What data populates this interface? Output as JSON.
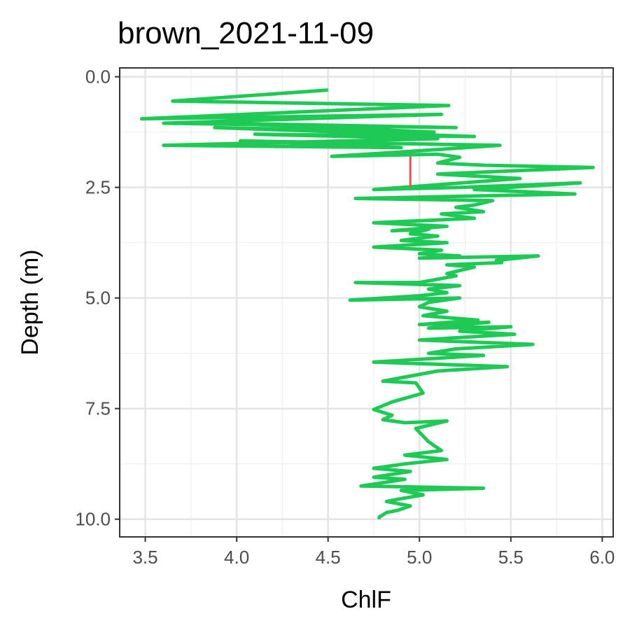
{
  "chart_data": {
    "type": "line",
    "title": "brown_2021-11-09",
    "xlabel": "ChlF",
    "ylabel": "Depth (m)",
    "xlim": [
      3.36,
      6.06
    ],
    "ylim": [
      10.4,
      -0.2
    ],
    "y_reversed": true,
    "grid": true,
    "x_ticks": [
      3.5,
      4.0,
      4.5,
      5.0,
      5.5,
      6.0
    ],
    "x_tick_labels": [
      "3.5",
      "4.0",
      "4.5",
      "5.0",
      "5.5",
      "6.0"
    ],
    "y_ticks": [
      0.0,
      2.5,
      5.0,
      7.5,
      10.0
    ],
    "y_tick_labels": [
      "0.0",
      "2.5",
      "5.0",
      "7.5",
      "10.0"
    ],
    "series": [
      {
        "color": "#1ec955",
        "points": [
          [
            4.5,
            0.3
          ],
          [
            3.65,
            0.55
          ],
          [
            5.16,
            0.65
          ],
          [
            3.48,
            0.95
          ],
          [
            5.12,
            0.85
          ],
          [
            3.6,
            1.05
          ],
          [
            5.2,
            1.15
          ],
          [
            3.92,
            1.05
          ],
          [
            5.08,
            1.25
          ],
          [
            3.88,
            1.15
          ],
          [
            5.3,
            1.35
          ],
          [
            4.1,
            1.3
          ],
          [
            5.1,
            1.4
          ],
          [
            3.6,
            1.55
          ],
          [
            4.9,
            1.6
          ],
          [
            4.02,
            1.45
          ],
          [
            5.44,
            1.55
          ],
          [
            4.9,
            1.7
          ],
          [
            4.52,
            1.8
          ],
          [
            5.1,
            1.75
          ],
          [
            5.22,
            1.82
          ],
          [
            5.1,
            1.95
          ],
          [
            5.36,
            2.0
          ],
          [
            5.95,
            2.05
          ],
          [
            5.1,
            2.2
          ],
          [
            5.55,
            2.3
          ],
          [
            4.75,
            2.55
          ],
          [
            5.22,
            2.5
          ],
          [
            5.88,
            2.4
          ],
          [
            5.3,
            2.55
          ],
          [
            5.85,
            2.65
          ],
          [
            4.65,
            2.75
          ],
          [
            5.4,
            2.8
          ],
          [
            5.3,
            2.9
          ],
          [
            5.2,
            2.95
          ],
          [
            5.35,
            3.05
          ],
          [
            5.12,
            3.1
          ],
          [
            5.3,
            3.2
          ],
          [
            4.75,
            3.3
          ],
          [
            5.15,
            3.38
          ],
          [
            4.85,
            3.48
          ],
          [
            5.05,
            3.45
          ],
          [
            4.95,
            3.55
          ],
          [
            5.1,
            3.6
          ],
          [
            4.9,
            3.7
          ],
          [
            5.15,
            3.75
          ],
          [
            4.75,
            3.85
          ],
          [
            5.12,
            3.92
          ],
          [
            5.0,
            4.0
          ],
          [
            5.22,
            4.05
          ],
          [
            5.0,
            4.1
          ],
          [
            5.65,
            4.05
          ],
          [
            5.42,
            4.15
          ],
          [
            5.45,
            4.2
          ],
          [
            5.15,
            4.25
          ],
          [
            5.3,
            4.3
          ],
          [
            5.15,
            4.45
          ],
          [
            5.2,
            4.5
          ],
          [
            5.0,
            4.65
          ],
          [
            4.65,
            4.65
          ],
          [
            5.22,
            4.72
          ],
          [
            5.05,
            4.8
          ],
          [
            5.15,
            4.88
          ],
          [
            5.0,
            4.95
          ],
          [
            4.62,
            5.05
          ],
          [
            5.22,
            5.0
          ],
          [
            5.05,
            5.1
          ],
          [
            5.0,
            5.2
          ],
          [
            5.15,
            5.3
          ],
          [
            5.02,
            5.4
          ],
          [
            5.32,
            5.5
          ],
          [
            5.0,
            5.6
          ],
          [
            5.38,
            5.55
          ],
          [
            5.05,
            5.68
          ],
          [
            5.5,
            5.65
          ],
          [
            5.22,
            5.75
          ],
          [
            5.52,
            5.82
          ],
          [
            5.0,
            5.95
          ],
          [
            5.62,
            6.05
          ],
          [
            5.2,
            6.15
          ],
          [
            5.05,
            6.25
          ],
          [
            5.35,
            6.3
          ],
          [
            4.75,
            6.45
          ],
          [
            5.48,
            6.55
          ],
          [
            5.1,
            6.65
          ],
          [
            4.8,
            6.88
          ],
          [
            4.98,
            6.92
          ],
          [
            5.02,
            7.15
          ],
          [
            4.85,
            7.35
          ],
          [
            4.75,
            7.52
          ],
          [
            4.85,
            7.65
          ],
          [
            4.8,
            7.75
          ],
          [
            4.92,
            7.82
          ],
          [
            5.15,
            7.78
          ],
          [
            4.98,
            7.95
          ],
          [
            5.05,
            8.25
          ],
          [
            5.12,
            8.45
          ],
          [
            4.92,
            8.55
          ],
          [
            5.15,
            8.65
          ],
          [
            4.92,
            8.75
          ],
          [
            4.75,
            8.85
          ],
          [
            4.95,
            8.92
          ],
          [
            4.75,
            9.05
          ],
          [
            4.92,
            9.1
          ],
          [
            4.68,
            9.25
          ],
          [
            5.35,
            9.3
          ],
          [
            4.9,
            9.35
          ],
          [
            5.02,
            9.45
          ],
          [
            4.88,
            9.55
          ],
          [
            4.82,
            9.6
          ],
          [
            4.95,
            9.7
          ],
          [
            4.88,
            9.8
          ],
          [
            4.82,
            9.85
          ],
          [
            4.78,
            9.95
          ],
          [
            4.78,
            10.0
          ]
        ]
      },
      {
        "color": "#f04e4e",
        "points": [
          [
            4.95,
            1.8
          ],
          [
            4.95,
            2.5
          ]
        ]
      }
    ]
  }
}
